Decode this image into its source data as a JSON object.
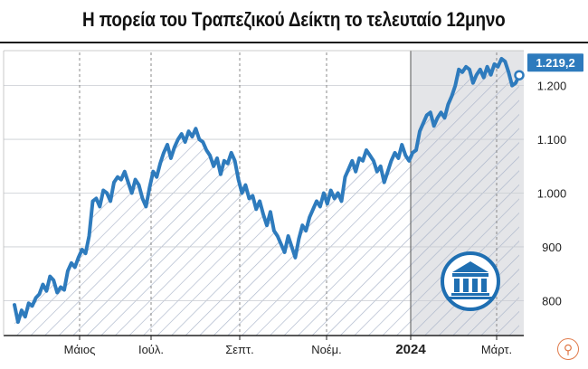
{
  "title": "Η πορεία του Τραπεζικού Δείκτη το τελευταίο 12μηνο",
  "chart_data": {
    "type": "area",
    "title": "Η πορεία του Τραπεζικού Δείκτη το τελευταίο 12μηνο",
    "xlabel": "",
    "ylabel": "",
    "x_tick_labels": [
      "Μάιος",
      "Ιούλ.",
      "Σεπτ.",
      "Νοέμ.",
      "2024",
      "Μάρτ."
    ],
    "y_ticks": [
      800,
      900,
      "1.000",
      "1.100",
      "1.200"
    ],
    "ylim": [
      735,
      1265
    ],
    "grid": "dashed vertical lines at month markers, shaded background for the 2024 period",
    "last_value_label": "1.219,2",
    "last_value": 1219.2,
    "colors": {
      "line": "#2e7bbd",
      "label_box": "#2e7bbd",
      "shade": "#e4e5e8",
      "hatch": "#a9b4c9",
      "icon": "#1f6fb2"
    },
    "icon": "bank-building-icon",
    "values": [
      792,
      760,
      782,
      770,
      795,
      790,
      805,
      812,
      830,
      818,
      845,
      838,
      815,
      825,
      820,
      855,
      870,
      862,
      880,
      895,
      888,
      920,
      985,
      990,
      975,
      1005,
      1000,
      985,
      1020,
      1030,
      1025,
      1040,
      1020,
      1000,
      1025,
      1015,
      990,
      975,
      1010,
      1040,
      1030,
      1055,
      1075,
      1090,
      1065,
      1085,
      1100,
      1110,
      1095,
      1115,
      1105,
      1120,
      1100,
      1095,
      1080,
      1070,
      1050,
      1065,
      1035,
      1060,
      1055,
      1075,
      1060,
      1025,
      1000,
      1015,
      990,
      995,
      970,
      985,
      960,
      940,
      965,
      930,
      920,
      905,
      890,
      920,
      900,
      880,
      915,
      940,
      930,
      955,
      970,
      985,
      975,
      1000,
      980,
      1005,
      990,
      1000,
      985,
      1030,
      1045,
      1060,
      1040,
      1065,
      1060,
      1080,
      1070,
      1060,
      1040,
      1050,
      1020,
      1040,
      1060,
      1075,
      1065,
      1090,
      1070,
      1060,
      1075,
      1080,
      1115,
      1130,
      1145,
      1150,
      1125,
      1140,
      1150,
      1140,
      1165,
      1180,
      1200,
      1230,
      1225,
      1235,
      1230,
      1205,
      1220,
      1230,
      1215,
      1235,
      1220,
      1240,
      1235,
      1250,
      1245,
      1225,
      1200,
      1205,
      1219.2
    ]
  }
}
